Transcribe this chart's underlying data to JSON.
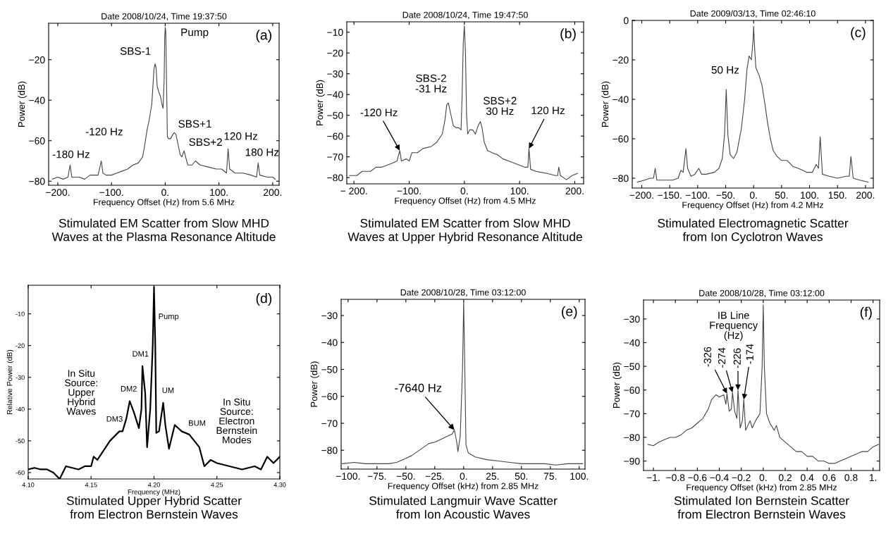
{
  "chart_data": [
    {
      "type": "line",
      "title": "Date 2008/10/24, Time 19:37:50",
      "xlabel": "Frequency Offset (Hz) from 5.6 MHz",
      "ylabel": "Power (dB)",
      "xlim": [
        -217,
        212
      ],
      "ylim": [
        -82,
        -2
      ],
      "xticks": [
        {
          "value": -200,
          "label": "−200."
        },
        {
          "value": -100,
          "label": "−100."
        },
        {
          "value": 0,
          "label": "0."
        },
        {
          "value": 100,
          "label": "100."
        },
        {
          "value": 200,
          "label": "200."
        }
      ],
      "yticks": [
        {
          "value": -20,
          "label": "−20"
        },
        {
          "value": -40,
          "label": "−40"
        },
        {
          "value": -60,
          "label": "−60"
        },
        {
          "value": -80,
          "label": "−80"
        }
      ],
      "series": [
        {
          "color": "#444444",
          "x": [
            -210,
            -200,
            -190,
            -181,
            -177,
            -174,
            -160,
            -150,
            -140,
            -125,
            -119,
            -116,
            -110,
            -100,
            -90,
            -80,
            -70,
            -60,
            -50,
            -42,
            -38,
            -34,
            -30,
            -25,
            -21,
            -19,
            -17,
            -15,
            -12,
            -9,
            -6,
            -4,
            -2,
            -1,
            0,
            1,
            3,
            4,
            6,
            10,
            14,
            17,
            20,
            24,
            28,
            31,
            35,
            38,
            42,
            50,
            56,
            65,
            80,
            95,
            105,
            114,
            117,
            120,
            130,
            145,
            160,
            170,
            173,
            176,
            190,
            200,
            205
          ],
          "values": [
            -79,
            -78,
            -79,
            -78,
            -72,
            -78,
            -78,
            -79,
            -77,
            -77,
            -70,
            -76,
            -77,
            -77,
            -76,
            -75,
            -74,
            -72,
            -71,
            -68,
            -62,
            -55,
            -50,
            -42,
            -25,
            -22,
            -24,
            -33,
            -36,
            -38,
            -42,
            -44,
            -30,
            -10,
            -4,
            -6,
            -40,
            -58,
            -59,
            -59,
            -57,
            -56,
            -57,
            -62,
            -67,
            -68,
            -65,
            -68,
            -72,
            -72,
            -70,
            -72,
            -73,
            -74,
            -74,
            -76,
            -64,
            -74,
            -76,
            -76,
            -77,
            -78,
            -71,
            -77,
            -78,
            -78,
            -79
          ]
        }
      ],
      "annotations": [
        {
          "text": "Pump",
          "x": 0,
          "y": -4
        },
        {
          "text": "SBS-1",
          "x": -19,
          "y": -22
        },
        {
          "text": "SBS+1",
          "x": 17,
          "y": -56
        },
        {
          "text": "SBS+2",
          "x": 35,
          "y": -65
        },
        {
          "text": "120 Hz",
          "x": 117,
          "y": -64
        },
        {
          "text": "180 Hz",
          "x": 173,
          "y": -71
        },
        {
          "text": "-120 Hz",
          "x": -119,
          "y": -70
        },
        {
          "text": "-180 Hz",
          "x": -177,
          "y": -72
        },
        "(a)",
        "Stimulated EM Scatter from Slow MHD\nWaves at the Plasma Resonance Altitude"
      ]
    },
    {
      "type": "line",
      "title": "Date 2008/10/24, Time 19:47:50",
      "xlabel": "Frequency Offset (Hz) from 4.5 MHz",
      "ylabel": "Power (dB)",
      "xlim": [
        -213,
        216
      ],
      "ylim": [
        -83,
        -5
      ],
      "xticks": [
        {
          "value": -200,
          "label": "− 200."
        },
        {
          "value": -100,
          "label": "−100."
        },
        {
          "value": 0,
          "label": "0."
        },
        {
          "value": 100,
          "label": "100."
        },
        {
          "value": 200,
          "label": "200."
        }
      ],
      "yticks": [
        {
          "value": -10,
          "label": "−10"
        },
        {
          "value": -20,
          "label": "−20"
        },
        {
          "value": -30,
          "label": "−30"
        },
        {
          "value": -40,
          "label": "−40"
        },
        {
          "value": -50,
          "label": "−50"
        },
        {
          "value": -60,
          "label": "−60"
        },
        {
          "value": -70,
          "label": "−70"
        },
        {
          "value": -80,
          "label": "−80"
        }
      ],
      "series": [
        {
          "color": "#444444",
          "x": [
            -208,
            -195,
            -185,
            -170,
            -160,
            -150,
            -140,
            -130,
            -122,
            -117,
            -114,
            -105,
            -100,
            -95,
            -85,
            -75,
            -60,
            -50,
            -40,
            -35,
            -32,
            -29,
            -25,
            -20,
            -15,
            -10,
            -6,
            -4,
            -2,
            0,
            2,
            4,
            6,
            10,
            15,
            20,
            25,
            29,
            32,
            36,
            42,
            50,
            60,
            70,
            80,
            90,
            100,
            110,
            115,
            117,
            120,
            130,
            150,
            165,
            169,
            171,
            174,
            185,
            195,
            205
          ],
          "values": [
            -79,
            -79,
            -77,
            -77,
            -75,
            -75,
            -74,
            -73,
            -72,
            -67,
            -72,
            -71,
            -72,
            -68,
            -68,
            -66,
            -65,
            -63,
            -59,
            -52,
            -45,
            -44,
            -49,
            -55,
            -56,
            -56,
            -57,
            -40,
            -15,
            -7,
            -20,
            -50,
            -59,
            -57,
            -57,
            -59,
            -55,
            -53,
            -56,
            -63,
            -67,
            -68,
            -69,
            -71,
            -72,
            -73,
            -74,
            -75,
            -75,
            -66,
            -76,
            -77,
            -78,
            -79,
            -79,
            -75,
            -79,
            -81,
            -79,
            -78
          ]
        }
      ],
      "annotations": [
        {
          "text": "-120 Hz",
          "x": -117,
          "y": -67
        },
        {
          "text": "120 Hz",
          "x": 117,
          "y": -66
        },
        {
          "text": "SBS-2\n-31 Hz",
          "x": -32,
          "y": -45
        },
        {
          "text": "SBS+2\n30 Hz",
          "x": 29,
          "y": -53
        },
        "(b)",
        "Stimulated EM Scatter from Slow MHD\nWaves at Upper Hybrid Resonance Altitude"
      ]
    },
    {
      "type": "line",
      "title": "Date 2009/03/13, Time 02:46:10",
      "xlabel": "Frequency Offset (Hz) from 4.2 MHz",
      "ylabel": "Power (dB)",
      "xlim": [
        -217,
        214
      ],
      "ylim": [
        -85,
        0
      ],
      "xticks": [
        {
          "value": -200,
          "label": "−200."
        },
        {
          "value": -150,
          "label": "−150."
        },
        {
          "value": -100,
          "label": "−100."
        },
        {
          "value": -50,
          "label": "−50."
        },
        {
          "value": 0,
          "label": "0."
        },
        {
          "value": 50,
          "label": "50."
        },
        {
          "value": 100,
          "label": "100."
        },
        {
          "value": 150,
          "label": "150."
        },
        {
          "value": 200,
          "label": "200."
        }
      ],
      "yticks": [
        {
          "value": 0,
          "label": "0"
        },
        {
          "value": -20,
          "label": "−20"
        },
        {
          "value": -40,
          "label": "−40"
        },
        {
          "value": -60,
          "label": "−60"
        },
        {
          "value": -80,
          "label": "−80"
        }
      ],
      "series": [
        {
          "color": "#444444",
          "x": [
            -208,
            -195,
            -185,
            -179,
            -176,
            -173,
            -160,
            -145,
            -135,
            -130,
            -126,
            -121,
            -118,
            -112,
            -105,
            -98,
            -93,
            -85,
            -70,
            -62,
            -56,
            -52,
            -49,
            -46,
            -42,
            -36,
            -30,
            -22,
            -16,
            -12,
            -8,
            -4,
            -1,
            0,
            2,
            4,
            10,
            15,
            20,
            25,
            30,
            35,
            42,
            50,
            60,
            70,
            80,
            95,
            105,
            112,
            116,
            119,
            123,
            135,
            150,
            165,
            171,
            174,
            178,
            190,
            205
          ],
          "values": [
            -82,
            -81,
            -80,
            -80,
            -75,
            -81,
            -81,
            -81,
            -80,
            -76,
            -77,
            -65,
            -75,
            -79,
            -78,
            -75,
            -78,
            -78,
            -77,
            -75,
            -70,
            -58,
            -35,
            -58,
            -68,
            -70,
            -67,
            -55,
            -40,
            -25,
            -18,
            -20,
            -10,
            -3,
            -15,
            -24,
            -28,
            -33,
            -42,
            -52,
            -60,
            -66,
            -69,
            -71,
            -71,
            -74,
            -75,
            -77,
            -77,
            -73,
            -75,
            -59,
            -78,
            -79,
            -80,
            -79,
            -79,
            -69,
            -80,
            -81,
            -82
          ]
        }
      ],
      "annotations": [
        {
          "text": "50 Hz",
          "x": -49,
          "y": -35
        },
        "(c)",
        "Stimulated Electromagnetic Scatter\nfrom Ion Cyclotron Waves"
      ]
    },
    {
      "type": "line",
      "xlabel": "Frequency (MHz)",
      "ylabel": "Relative Power (dB)",
      "xlim": [
        4.1,
        4.3
      ],
      "ylim": [
        -62,
        -1
      ],
      "xticks": [
        {
          "value": 4.1,
          "label": "4.10"
        },
        {
          "value": 4.15,
          "label": "4.15"
        },
        {
          "value": 4.2,
          "label": "4.20"
        },
        {
          "value": 4.25,
          "label": "4.25"
        },
        {
          "value": 4.3,
          "label": "4.30"
        }
      ],
      "yticks": [
        -10,
        -20,
        -30,
        -40,
        -50,
        -60
      ],
      "series": [
        {
          "color": "#000000",
          "x": [
            4.1,
            4.105,
            4.11,
            4.115,
            4.12,
            4.125,
            4.13,
            4.135,
            4.14,
            4.145,
            4.15,
            4.152,
            4.155,
            4.16,
            4.165,
            4.1725,
            4.175,
            4.178,
            4.1807,
            4.184,
            4.188,
            4.19,
            4.1908,
            4.193,
            4.1945,
            4.197,
            4.199,
            4.2,
            4.201,
            4.2018,
            4.204,
            4.2073,
            4.209,
            4.2119,
            4.214,
            4.2165,
            4.222,
            4.228,
            4.232,
            4.236,
            4.24,
            4.245,
            4.25,
            4.26,
            4.27,
            4.28,
            4.285,
            4.29,
            4.295,
            4.3
          ],
          "values": [
            -59,
            -58.5,
            -59,
            -59,
            -60,
            -62,
            -58,
            -58.5,
            -59,
            -58,
            -58,
            -55,
            -56,
            -53,
            -50,
            -47,
            -47,
            -43,
            -37.5,
            -41,
            -46,
            -40,
            -26.5,
            -35,
            -52,
            -40,
            -20,
            -1.5,
            -20,
            -47.5,
            -47,
            -38,
            -45,
            -52.5,
            -49,
            -45,
            -47,
            -48,
            -50,
            -52,
            -58,
            -56,
            -57,
            -58,
            -59,
            -58,
            -59,
            -55,
            -57,
            -55
          ]
        }
      ],
      "annotations": [
        "Pump",
        {
          "text": "DM1",
          "x": 4.1908,
          "y": -26.5
        },
        {
          "text": "DM2",
          "x": 4.1807,
          "y": -37.5
        },
        {
          "text": "DM3",
          "x": 4.1725,
          "y": -47
        },
        {
          "text": "UM",
          "x": 4.2073,
          "y": -38
        },
        {
          "text": "BUM",
          "x": 4.228,
          "y": -48
        },
        "In Situ\nSource:\nUpper\nHybrid\nWaves",
        "In Situ\nSource:\nElectron\nBernstein\nModes",
        "(d)",
        "Stimulated Upper Hybrid Scatter\nfrom Electron Bernstein Waves"
      ]
    },
    {
      "type": "line",
      "title": "Date 2008/10/28, Time 03:12:00",
      "xlabel": "Frequency Offset (kHz) from 2.85 MHz",
      "ylabel": "Power (dB)",
      "xlim": [
        -106,
        105
      ],
      "ylim": [
        -87,
        -24
      ],
      "xticks": [
        {
          "value": -100,
          "label": "−100."
        },
        {
          "value": -75,
          "label": "−75."
        },
        {
          "value": -50,
          "label": "−50."
        },
        {
          "value": -25,
          "label": "−25."
        },
        {
          "value": 0,
          "label": "0."
        },
        {
          "value": 25,
          "label": "25."
        },
        {
          "value": 50,
          "label": "50."
        },
        {
          "value": 75,
          "label": "75."
        },
        {
          "value": 100,
          "label": "100."
        }
      ],
      "yticks": [
        {
          "value": -30,
          "label": "−30"
        },
        {
          "value": -40,
          "label": "−40"
        },
        {
          "value": -50,
          "label": "−50"
        },
        {
          "value": -60,
          "label": "−60"
        },
        {
          "value": -70,
          "label": "−70"
        },
        {
          "value": -80,
          "label": "−80"
        }
      ],
      "series": [
        {
          "color": "#444444",
          "x": [
            -105,
            -95,
            -85,
            -75,
            -65,
            -58,
            -50,
            -45,
            -40,
            -35,
            -30,
            -25,
            -20,
            -15,
            -10,
            -8,
            -6,
            -5,
            -3,
            -1,
            0,
            1,
            2,
            4,
            10,
            20,
            30,
            40,
            50,
            60,
            70,
            80,
            90,
            103
          ],
          "values": [
            -85,
            -84.5,
            -85,
            -85,
            -85,
            -84.5,
            -83,
            -82,
            -80.5,
            -79,
            -77.5,
            -77,
            -76,
            -75,
            -74,
            -72.5,
            -77,
            -80.5,
            -75,
            -50,
            -25,
            -50,
            -78,
            -81,
            -82.5,
            -83.5,
            -84,
            -84.5,
            -85,
            -85,
            -85,
            -85.5,
            -85,
            -85
          ]
        }
      ],
      "annotations": [
        {
          "text": "-7640 Hz",
          "x": -8,
          "y": -72.5
        },
        "(e)",
        "Stimulated Langmuir Wave Scatter\nfrom Ion Acoustic Waves"
      ]
    },
    {
      "type": "line",
      "title": "Date 2008/10/28, Time 03:12:00",
      "xlabel": "Frequency Offset (kHz) from 2.85 MHz",
      "ylabel": "Power (dB)",
      "xlim": [
        -1.09,
        1.06
      ],
      "ylim": [
        -94,
        -22
      ],
      "xticks": [
        {
          "value": -1,
          "label": "−1."
        },
        {
          "value": -0.8,
          "label": "−0.8"
        },
        {
          "value": -0.6,
          "label": "−0.6"
        },
        {
          "value": -0.4,
          "label": "−0.4"
        },
        {
          "value": -0.2,
          "label": "−0.2"
        },
        {
          "value": 0,
          "label": "0."
        },
        {
          "value": 0.2,
          "label": "0.2"
        },
        {
          "value": 0.4,
          "label": "0.4"
        },
        {
          "value": 0.6,
          "label": "0.6"
        },
        {
          "value": 0.8,
          "label": "0.8"
        },
        {
          "value": 1,
          "label": "1."
        }
      ],
      "yticks": [
        {
          "value": -30,
          "label": "−30"
        },
        {
          "value": -40,
          "label": "−40"
        },
        {
          "value": -50,
          "label": "−50"
        },
        {
          "value": -60,
          "label": "−60"
        },
        {
          "value": -70,
          "label": "−70"
        },
        {
          "value": -80,
          "label": "−80"
        },
        {
          "value": -90,
          "label": "−90"
        }
      ],
      "series": [
        {
          "color": "#444444",
          "x": [
            -1.05,
            -1.0,
            -0.95,
            -0.9,
            -0.85,
            -0.8,
            -0.75,
            -0.7,
            -0.65,
            -0.6,
            -0.55,
            -0.5,
            -0.47,
            -0.43,
            -0.4,
            -0.36,
            -0.34,
            -0.33,
            -0.31,
            -0.29,
            -0.28,
            -0.26,
            -0.24,
            -0.23,
            -0.21,
            -0.19,
            -0.177,
            -0.16,
            -0.14,
            -0.12,
            -0.1,
            -0.07,
            -0.03,
            -0.01,
            0,
            0.01,
            0.03,
            0.06,
            0.1,
            0.12,
            0.15,
            0.2,
            0.25,
            0.3,
            0.35,
            0.4,
            0.45,
            0.5,
            0.55,
            0.6,
            0.65,
            0.7,
            0.75,
            0.8,
            0.85,
            0.9,
            0.95,
            1.0,
            1.05
          ],
          "values": [
            -83,
            -83.5,
            -82,
            -81,
            -80,
            -80,
            -79,
            -77,
            -76,
            -74,
            -72,
            -68,
            -64,
            -62,
            -63,
            -62,
            -66,
            -61.5,
            -69,
            -68,
            -61,
            -69,
            -72,
            -60,
            -76,
            -73,
            -64,
            -77,
            -75,
            -73,
            -76,
            -73,
            -70,
            -50,
            -24,
            -50,
            -70,
            -74,
            -77,
            -75,
            -80,
            -82,
            -84,
            -86,
            -86,
            -88,
            -88,
            -90,
            -90,
            -91,
            -91,
            -90,
            -89,
            -88,
            -87,
            -86,
            -86,
            -84,
            -83
          ]
        }
      ],
      "annotations": [
        "IB Line\nFrequency\n(Hz)",
        {
          "text": "-326",
          "x": -0.33,
          "y": -61.5
        },
        {
          "text": "-274",
          "x": -0.28,
          "y": -61
        },
        {
          "text": "-226",
          "x": -0.23,
          "y": -60
        },
        {
          "text": "-174",
          "x": -0.177,
          "y": -64
        },
        "(f)",
        "Stimulated Ion Bernstein Scatter\nfrom Electron Bernstein Waves"
      ]
    }
  ]
}
